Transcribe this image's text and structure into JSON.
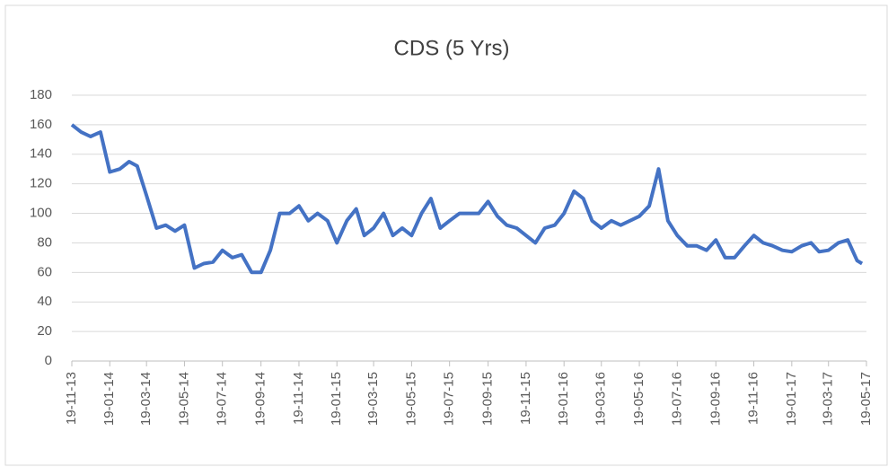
{
  "chart_data": {
    "type": "line",
    "title": "CDS (5 Yrs)",
    "x": [
      "19-11-13",
      "04-12-13",
      "19-12-13",
      "04-01-14",
      "19-01-14",
      "04-02-14",
      "19-02-14",
      "04-03-14",
      "19-03-14",
      "04-04-14",
      "19-04-14",
      "04-05-14",
      "19-05-14",
      "04-06-14",
      "19-06-14",
      "04-07-14",
      "19-07-14",
      "04-08-14",
      "19-08-14",
      "04-09-14",
      "19-09-14",
      "04-10-14",
      "19-10-14",
      "04-11-14",
      "19-11-14",
      "04-12-14",
      "19-12-14",
      "04-01-15",
      "19-01-15",
      "04-02-15",
      "19-02-15",
      "04-03-15",
      "19-03-15",
      "04-04-15",
      "19-04-15",
      "04-05-15",
      "19-05-15",
      "04-06-15",
      "19-06-15",
      "04-07-15",
      "19-07-15",
      "04-08-15",
      "19-08-15",
      "04-09-15",
      "19-09-15",
      "04-10-15",
      "19-10-15",
      "04-11-15",
      "19-11-15",
      "04-12-15",
      "19-12-15",
      "04-01-16",
      "19-01-16",
      "04-02-16",
      "19-02-16",
      "04-03-16",
      "19-03-16",
      "04-04-16",
      "19-04-16",
      "04-05-16",
      "19-05-16",
      "04-06-16",
      "19-06-16",
      "04-07-16",
      "19-07-16",
      "04-08-16",
      "19-08-16",
      "04-09-16",
      "19-09-16",
      "04-10-16",
      "19-10-16",
      "04-11-16",
      "19-11-16",
      "04-12-16",
      "19-12-16",
      "04-01-17",
      "19-01-17",
      "04-02-17",
      "19-02-17",
      "04-03-17",
      "19-03-17",
      "04-04-17",
      "19-04-17",
      "04-05-17",
      "12-05-17"
    ],
    "series": [
      {
        "name": "CDS (5 Yrs)",
        "color": "#4472c4",
        "values": [
          160,
          155,
          152,
          155,
          128,
          130,
          135,
          132,
          112,
          90,
          92,
          88,
          92,
          63,
          66,
          67,
          75,
          70,
          72,
          60,
          60,
          75,
          100,
          100,
          105,
          95,
          100,
          95,
          80,
          95,
          103,
          85,
          90,
          100,
          85,
          90,
          85,
          100,
          110,
          90,
          95,
          100,
          100,
          100,
          108,
          98,
          92,
          90,
          85,
          80,
          90,
          92,
          100,
          115,
          110,
          95,
          90,
          95,
          92,
          95,
          98,
          105,
          130,
          95,
          85,
          78,
          78,
          75,
          82,
          70,
          70,
          78,
          85,
          80,
          78,
          75,
          74,
          78,
          80,
          74,
          75,
          80,
          82,
          68,
          66
        ]
      }
    ],
    "xlim": [
      "19-11-13",
      "19-05-17"
    ],
    "xticks": [
      "19-11-13",
      "19-01-14",
      "19-03-14",
      "19-05-14",
      "19-07-14",
      "19-09-14",
      "19-11-14",
      "19-01-15",
      "19-03-15",
      "19-05-15",
      "19-07-15",
      "19-09-15",
      "19-11-15",
      "19-01-16",
      "19-03-16",
      "19-05-16",
      "19-07-16",
      "19-09-16",
      "19-11-16",
      "19-01-17",
      "19-03-17",
      "19-05-17"
    ],
    "ylim": [
      0,
      180
    ],
    "yticks": [
      0,
      20,
      40,
      60,
      80,
      100,
      120,
      140,
      160,
      180
    ],
    "grid": true
  }
}
